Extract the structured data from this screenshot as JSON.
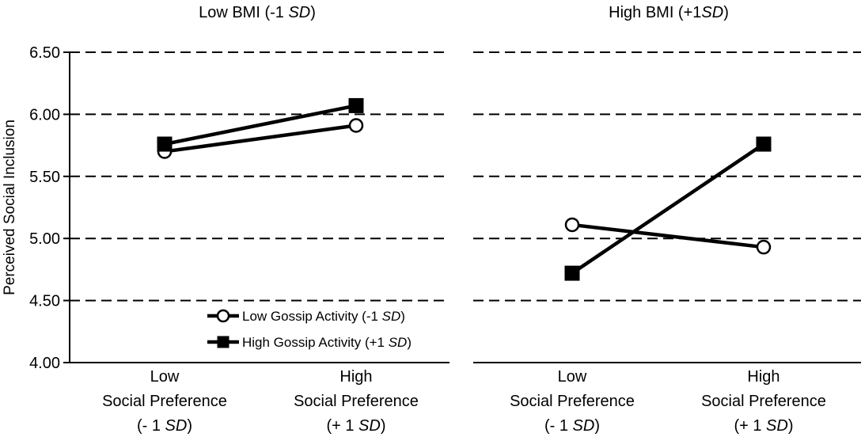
{
  "chart_data": {
    "type": "line",
    "ylabel": "Perceived Social Inclusion",
    "ylim": [
      4.0,
      6.5
    ],
    "yticks": [
      4.0,
      4.5,
      5.0,
      5.5,
      6.0,
      6.5
    ],
    "ytick_labels": [
      "4.00",
      "4.50",
      "5.00",
      "5.50",
      "6.00",
      "6.50"
    ],
    "grid_values": [
      4.5,
      5.0,
      5.5,
      6.0,
      6.5
    ],
    "categories": [
      {
        "line1": "Low",
        "line2": "Social Preference",
        "line3_prefix": "(- 1 ",
        "line3_italic": "SD",
        "line3_suffix": ")"
      },
      {
        "line1": "High",
        "line2": "Social Preference",
        "line3_prefix": "(+ 1 ",
        "line3_italic": "SD",
        "line3_suffix": ")"
      }
    ],
    "legend": {
      "position": "bottom-right of left panel",
      "entries": [
        {
          "series": "low_gossip",
          "prefix": "Low Gossip Activity (-1 ",
          "italic": "SD",
          "suffix": ")"
        },
        {
          "series": "high_gossip",
          "prefix": "High Gossip Activity (+1 ",
          "italic": "SD",
          "suffix": ")"
        }
      ]
    },
    "panels": [
      {
        "title_prefix": "Low BMI (-1 ",
        "title_italic": "SD",
        "title_suffix": ")",
        "series": [
          {
            "key": "low_gossip",
            "name": "Low Gossip Activity (-1 SD)",
            "marker": "open-circle",
            "values": [
              5.7,
              5.91
            ]
          },
          {
            "key": "high_gossip",
            "name": "High Gossip Activity (+1 SD)",
            "marker": "filled-square",
            "values": [
              5.76,
              6.07
            ]
          }
        ]
      },
      {
        "title_prefix": "High BMI (+1",
        "title_italic": "SD",
        "title_suffix": ")",
        "series": [
          {
            "key": "low_gossip",
            "name": "Low Gossip Activity (-1 SD)",
            "marker": "open-circle",
            "values": [
              5.11,
              4.93
            ]
          },
          {
            "key": "high_gossip",
            "name": "High Gossip Activity (+1 SD)",
            "marker": "filled-square",
            "values": [
              4.72,
              5.76
            ]
          }
        ]
      }
    ]
  }
}
